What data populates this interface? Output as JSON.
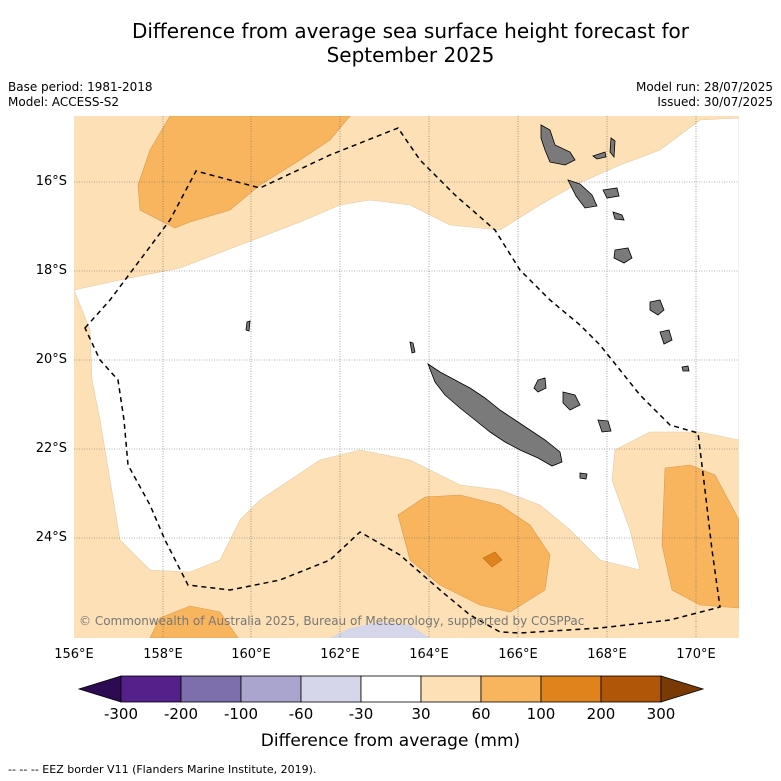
{
  "title_line1": "Difference from average sea surface height forecast for",
  "title_line2": "September 2025",
  "meta": {
    "base_period": "Base period: 1981-2018",
    "model": "Model: ACCESS-S2",
    "model_run": "Model run: 28/07/2025",
    "issued": "Issued: 30/07/2025"
  },
  "map": {
    "lat_ticks": [
      "16°S",
      "18°S",
      "20°S",
      "22°S",
      "24°S"
    ],
    "lon_ticks": [
      "156°E",
      "158°E",
      "160°E",
      "162°E",
      "164°E",
      "166°E",
      "168°E",
      "170°E"
    ],
    "copyright": "© Commonwealth of Australia 2025, Bureau of Meteorology, supported by COSPPac"
  },
  "colorbar": {
    "labels": [
      "-300",
      "-200",
      "-100",
      "-60",
      "-30",
      "30",
      "60",
      "100",
      "200",
      "300"
    ],
    "colors": [
      "#2d0b52",
      "#55208a",
      "#7c6fab",
      "#aaa5cf",
      "#d6d6ea",
      "#ffffff",
      "#fde0b5",
      "#f9b55e",
      "#e0831c",
      "#b05608",
      "#7a3a05"
    ],
    "title": "Difference from average (mm)"
  },
  "footnote": "--  --  -- EEZ border V11 (Flanders Marine Institute, 2019)."
}
